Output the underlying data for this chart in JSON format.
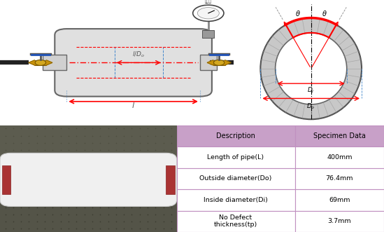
{
  "title": "",
  "table_headers": [
    "Description",
    "Specimen Data"
  ],
  "table_rows": [
    [
      "Length of pipe(L)",
      "400mm"
    ],
    [
      "Outside diameter(Do)",
      "76.4mm"
    ],
    [
      "Inside diameter(Di)",
      "69mm"
    ],
    [
      "No Defect\nthickness(tp)",
      "3.7mm"
    ]
  ],
  "header_color": "#c8a0c8",
  "row_color": "#ffffff",
  "border_color": "#c090c0",
  "fig_width": 5.49,
  "fig_height": 3.31,
  "dpi": 100
}
